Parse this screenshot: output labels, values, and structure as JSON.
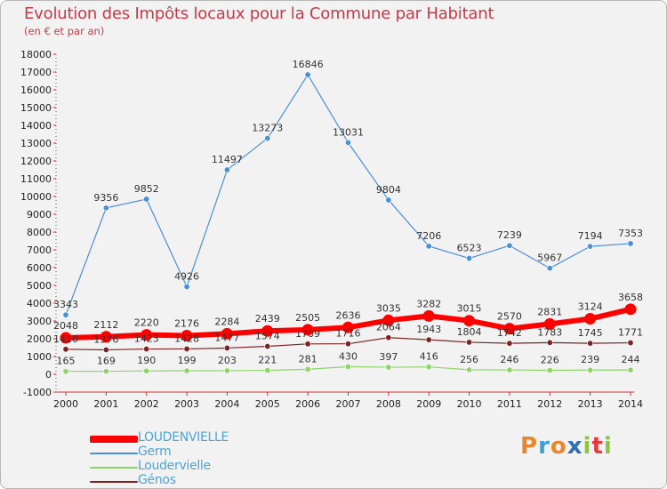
{
  "header": {
    "title": "Evolution des Impôts locaux pour la Commune par Habitant",
    "subtitle": "(en € et par an)"
  },
  "logo": {
    "text": "Proxiti",
    "colors": [
      "#e9872f",
      "#3aa0d8",
      "#e9872f",
      "#2f6fb8",
      "#8cc63f",
      "#e23e3e",
      "#8cc63f"
    ]
  },
  "chart_data": {
    "type": "line",
    "title": "Evolution des Impôts locaux pour la Commune par Habitant",
    "subtitle": "(en € et par an)",
    "categories": [
      "2000",
      "2001",
      "2002",
      "2003",
      "2004",
      "2005",
      "2006",
      "2007",
      "2008",
      "2009",
      "2010",
      "2011",
      "2012",
      "2013",
      "2014"
    ],
    "ylim": [
      -1000,
      18000
    ],
    "ytick_step": 1000,
    "grid": false,
    "legend_position": "bottom-left",
    "series": [
      {
        "name": "LOUDENVIELLE",
        "color": "#ff0000",
        "values": [
          2048,
          2112,
          2220,
          2176,
          2284,
          2439,
          2505,
          2636,
          3035,
          3282,
          3015,
          2570,
          2831,
          3124,
          3658
        ]
      },
      {
        "name": "Germ",
        "color": "#4a90d4",
        "values": [
          3343,
          9356,
          9852,
          4926,
          11497,
          13273,
          16846,
          13031,
          9804,
          7206,
          6523,
          7239,
          5967,
          7194,
          7353
        ]
      },
      {
        "name": "Loudervielle",
        "color": "#8fd468",
        "values": [
          165,
          169,
          190,
          199,
          203,
          221,
          281,
          430,
          397,
          416,
          256,
          246,
          226,
          239,
          244
        ]
      },
      {
        "name": "Génos",
        "color": "#7a2525",
        "values": [
          1410,
          1376,
          1423,
          1428,
          1477,
          1574,
          1709,
          1716,
          2064,
          1943,
          1804,
          1742,
          1783,
          1745,
          1771
        ]
      }
    ]
  }
}
